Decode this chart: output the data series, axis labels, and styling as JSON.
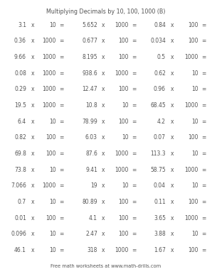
{
  "title": "Multiplying Decimals by 10, 100, 1000 (B)",
  "footer": "Free math worksheets at www.math-drills.com",
  "background_color": "#ffffff",
  "text_color": "#555555",
  "title_fontsize": 5.8,
  "footer_fontsize": 4.8,
  "problem_fontsize": 5.5,
  "columns": [
    [
      [
        "3.1",
        "10"
      ],
      [
        "0.36",
        "1000"
      ],
      [
        "9.66",
        "1000"
      ],
      [
        "0.08",
        "1000"
      ],
      [
        "0.29",
        "1000"
      ],
      [
        "19.5",
        "1000"
      ],
      [
        "6.4",
        "10"
      ],
      [
        "0.82",
        "100"
      ],
      [
        "69.8",
        "100"
      ],
      [
        "73.8",
        "10"
      ],
      [
        "7.066",
        "1000"
      ],
      [
        "0.7",
        "10"
      ],
      [
        "0.01",
        "100"
      ],
      [
        "0.096",
        "10"
      ],
      [
        "46.1",
        "10"
      ]
    ],
    [
      [
        "5.652",
        "1000"
      ],
      [
        "0.677",
        "100"
      ],
      [
        "8.195",
        "100"
      ],
      [
        "938.6",
        "1000"
      ],
      [
        "12.47",
        "100"
      ],
      [
        "10.8",
        "10"
      ],
      [
        "78.99",
        "100"
      ],
      [
        "6.03",
        "10"
      ],
      [
        "87.6",
        "1000"
      ],
      [
        "9.41",
        "1000"
      ],
      [
        "19",
        "10"
      ],
      [
        "80.89",
        "100"
      ],
      [
        "4.1",
        "100"
      ],
      [
        "2.47",
        "100"
      ],
      [
        "318",
        "1000"
      ]
    ],
    [
      [
        "0.84",
        "100"
      ],
      [
        "0.034",
        "100"
      ],
      [
        "0.5",
        "1000"
      ],
      [
        "0.62",
        "10"
      ],
      [
        "0.96",
        "10"
      ],
      [
        "68.45",
        "1000"
      ],
      [
        "4.2",
        "10"
      ],
      [
        "0.07",
        "100"
      ],
      [
        "113.3",
        "10"
      ],
      [
        "58.75",
        "1000"
      ],
      [
        "0.04",
        "10"
      ],
      [
        "0.11",
        "100"
      ],
      [
        "3.65",
        "1000"
      ],
      [
        "3.88",
        "10"
      ],
      [
        "1.67",
        "100"
      ]
    ]
  ]
}
